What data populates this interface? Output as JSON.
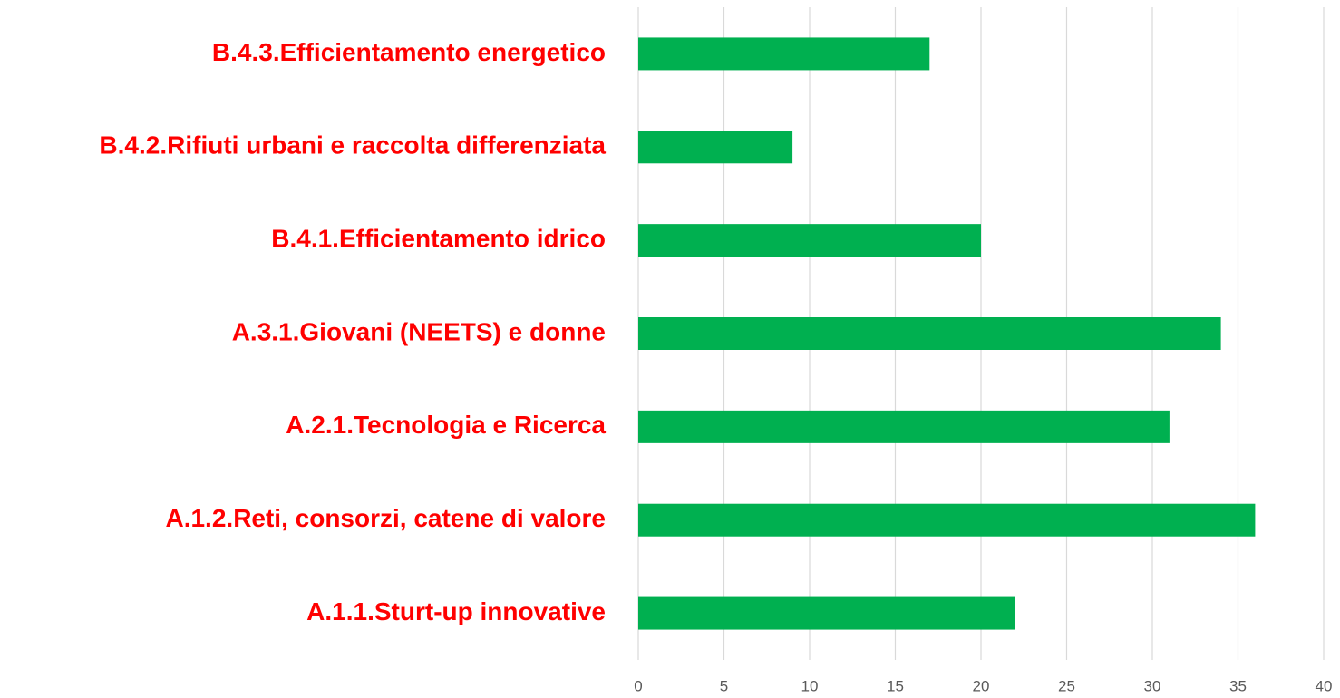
{
  "chart_data": {
    "type": "barh",
    "categories": [
      "B.4.3.Efficientamento energetico",
      "B.4.2.Rifiuti urbani e raccolta differenziata",
      "B.4.1.Efficientamento idrico",
      "A.3.1.Giovani (NEETS) e donne",
      "A.2.1.Tecnologia e Ricerca",
      "A.1.2.Reti, consorzi, catene di valore",
      "A.1.1.Sturt-up innovative"
    ],
    "values": [
      17,
      9,
      20,
      34,
      31,
      36,
      22
    ],
    "color": "#00b050",
    "label_color": "#ff0000",
    "xlim": [
      0,
      40
    ],
    "xticks": [
      0,
      5,
      10,
      15,
      20,
      25,
      30,
      35,
      40
    ],
    "grid": true
  }
}
